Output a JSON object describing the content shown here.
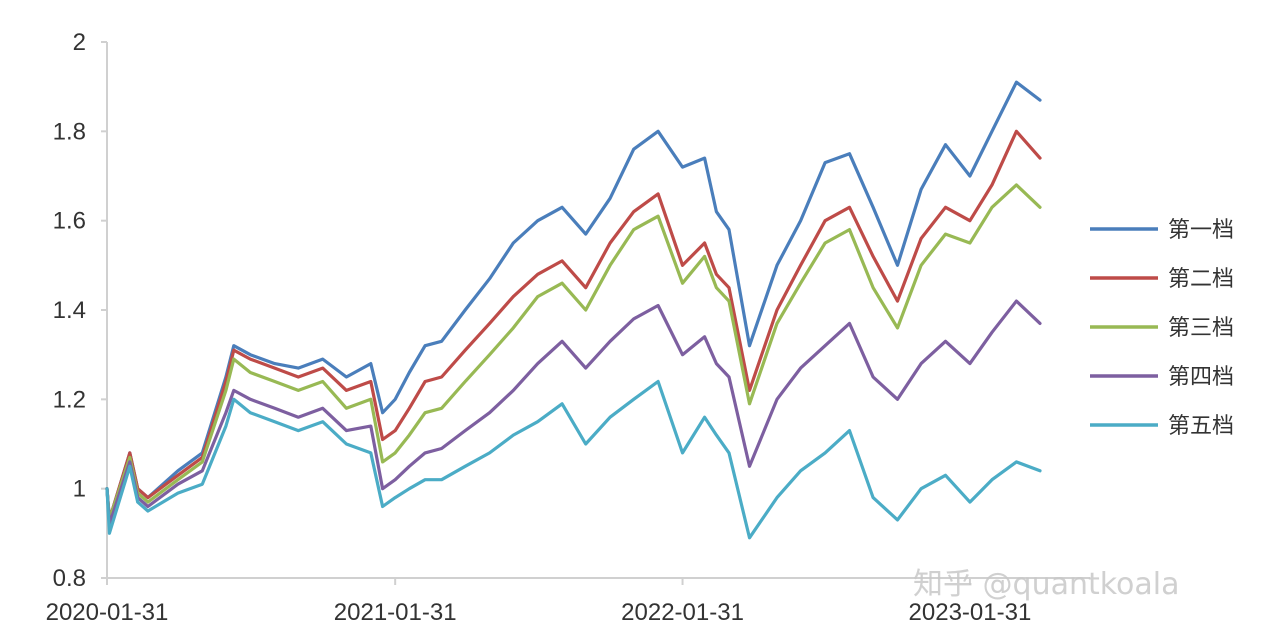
{
  "chart_data": {
    "type": "line",
    "title": "",
    "xlabel": "",
    "ylabel": "",
    "x_ticks": [
      "2020-01-31",
      "2021-01-31",
      "2022-01-31",
      "2023-01-31"
    ],
    "y_ticks": [
      "0.8",
      "1",
      "1.2",
      "1.4",
      "1.6",
      "1.8",
      "2"
    ],
    "ylim": [
      0.8,
      2.0
    ],
    "x_range": [
      "2020-01-31",
      "2023-04-30"
    ],
    "grid": false,
    "legend_position": "right",
    "watermark": "知乎 @quantkoala",
    "series": [
      {
        "name": "第一档",
        "color": "#4a7ebb",
        "x": [
          "2020-01-31",
          "2020-02-03",
          "2020-02-29",
          "2020-03-10",
          "2020-03-23",
          "2020-04-30",
          "2020-05-31",
          "2020-06-30",
          "2020-07-10",
          "2020-07-31",
          "2020-08-31",
          "2020-09-30",
          "2020-10-31",
          "2020-11-30",
          "2020-12-31",
          "2021-01-15",
          "2021-01-31",
          "2021-02-18",
          "2021-03-10",
          "2021-03-31",
          "2021-04-30",
          "2021-05-31",
          "2021-06-30",
          "2021-07-31",
          "2021-08-31",
          "2021-09-30",
          "2021-10-31",
          "2021-11-30",
          "2021-12-31",
          "2022-01-31",
          "2022-02-28",
          "2022-03-15",
          "2022-03-31",
          "2022-04-26",
          "2022-05-31",
          "2022-06-30",
          "2022-07-31",
          "2022-08-31",
          "2022-09-30",
          "2022-10-31",
          "2022-11-30",
          "2022-12-31",
          "2023-01-31",
          "2023-02-28",
          "2023-03-31",
          "2023-04-30"
        ],
        "values": [
          1.0,
          0.93,
          1.08,
          1.0,
          0.98,
          1.04,
          1.08,
          1.25,
          1.32,
          1.3,
          1.28,
          1.27,
          1.29,
          1.25,
          1.28,
          1.17,
          1.2,
          1.26,
          1.32,
          1.33,
          1.4,
          1.47,
          1.55,
          1.6,
          1.63,
          1.57,
          1.65,
          1.76,
          1.8,
          1.72,
          1.74,
          1.62,
          1.58,
          1.32,
          1.5,
          1.6,
          1.73,
          1.75,
          1.63,
          1.5,
          1.67,
          1.77,
          1.7,
          1.8,
          1.91,
          1.87
        ]
      },
      {
        "name": "第二档",
        "color": "#be4b48",
        "x": [
          "2020-01-31",
          "2020-02-03",
          "2020-02-29",
          "2020-03-10",
          "2020-03-23",
          "2020-04-30",
          "2020-05-31",
          "2020-06-30",
          "2020-07-10",
          "2020-07-31",
          "2020-08-31",
          "2020-09-30",
          "2020-10-31",
          "2020-11-30",
          "2020-12-31",
          "2021-01-15",
          "2021-01-31",
          "2021-02-18",
          "2021-03-10",
          "2021-03-31",
          "2021-04-30",
          "2021-05-31",
          "2021-06-30",
          "2021-07-31",
          "2021-08-31",
          "2021-09-30",
          "2021-10-31",
          "2021-11-30",
          "2021-12-31",
          "2022-01-31",
          "2022-02-28",
          "2022-03-15",
          "2022-03-31",
          "2022-04-26",
          "2022-05-31",
          "2022-06-30",
          "2022-07-31",
          "2022-08-31",
          "2022-09-30",
          "2022-10-31",
          "2022-11-30",
          "2022-12-31",
          "2023-01-31",
          "2023-02-28",
          "2023-03-31",
          "2023-04-30"
        ],
        "values": [
          1.0,
          0.93,
          1.08,
          1.0,
          0.98,
          1.03,
          1.07,
          1.24,
          1.31,
          1.29,
          1.27,
          1.25,
          1.27,
          1.22,
          1.24,
          1.11,
          1.13,
          1.18,
          1.24,
          1.25,
          1.31,
          1.37,
          1.43,
          1.48,
          1.51,
          1.45,
          1.55,
          1.62,
          1.66,
          1.5,
          1.55,
          1.48,
          1.45,
          1.22,
          1.4,
          1.5,
          1.6,
          1.63,
          1.52,
          1.42,
          1.56,
          1.63,
          1.6,
          1.68,
          1.8,
          1.74
        ]
      },
      {
        "name": "第三档",
        "color": "#98b954",
        "x": [
          "2020-01-31",
          "2020-02-03",
          "2020-02-29",
          "2020-03-10",
          "2020-03-23",
          "2020-04-30",
          "2020-05-31",
          "2020-06-30",
          "2020-07-10",
          "2020-07-31",
          "2020-08-31",
          "2020-09-30",
          "2020-10-31",
          "2020-11-30",
          "2020-12-31",
          "2021-01-15",
          "2021-01-31",
          "2021-02-18",
          "2021-03-10",
          "2021-03-31",
          "2021-04-30",
          "2021-05-31",
          "2021-06-30",
          "2021-07-31",
          "2021-08-31",
          "2021-09-30",
          "2021-10-31",
          "2021-11-30",
          "2021-12-31",
          "2022-01-31",
          "2022-02-28",
          "2022-03-15",
          "2022-03-31",
          "2022-04-26",
          "2022-05-31",
          "2022-06-30",
          "2022-07-31",
          "2022-08-31",
          "2022-09-30",
          "2022-10-31",
          "2022-11-30",
          "2022-12-31",
          "2023-01-31",
          "2023-02-28",
          "2023-03-31",
          "2023-04-30"
        ],
        "values": [
          1.0,
          0.93,
          1.07,
          0.99,
          0.97,
          1.02,
          1.06,
          1.22,
          1.29,
          1.26,
          1.24,
          1.22,
          1.24,
          1.18,
          1.2,
          1.06,
          1.08,
          1.12,
          1.17,
          1.18,
          1.24,
          1.3,
          1.36,
          1.43,
          1.46,
          1.4,
          1.5,
          1.58,
          1.61,
          1.46,
          1.52,
          1.45,
          1.42,
          1.19,
          1.37,
          1.46,
          1.55,
          1.58,
          1.45,
          1.36,
          1.5,
          1.57,
          1.55,
          1.63,
          1.68,
          1.63
        ]
      },
      {
        "name": "第四档",
        "color": "#7d5fa0",
        "x": [
          "2020-01-31",
          "2020-02-03",
          "2020-02-29",
          "2020-03-10",
          "2020-03-23",
          "2020-04-30",
          "2020-05-31",
          "2020-06-30",
          "2020-07-10",
          "2020-07-31",
          "2020-08-31",
          "2020-09-30",
          "2020-10-31",
          "2020-11-30",
          "2020-12-31",
          "2021-01-15",
          "2021-01-31",
          "2021-02-18",
          "2021-03-10",
          "2021-03-31",
          "2021-04-30",
          "2021-05-31",
          "2021-06-30",
          "2021-07-31",
          "2021-08-31",
          "2021-09-30",
          "2021-10-31",
          "2021-11-30",
          "2021-12-31",
          "2022-01-31",
          "2022-02-28",
          "2022-03-15",
          "2022-03-31",
          "2022-04-26",
          "2022-05-31",
          "2022-06-30",
          "2022-07-31",
          "2022-08-31",
          "2022-09-30",
          "2022-10-31",
          "2022-11-30",
          "2022-12-31",
          "2023-01-31",
          "2023-02-28",
          "2023-03-31",
          "2023-04-30"
        ],
        "values": [
          1.0,
          0.92,
          1.06,
          0.98,
          0.96,
          1.01,
          1.04,
          1.17,
          1.22,
          1.2,
          1.18,
          1.16,
          1.18,
          1.13,
          1.14,
          1.0,
          1.02,
          1.05,
          1.08,
          1.09,
          1.13,
          1.17,
          1.22,
          1.28,
          1.33,
          1.27,
          1.33,
          1.38,
          1.41,
          1.3,
          1.34,
          1.28,
          1.25,
          1.05,
          1.2,
          1.27,
          1.32,
          1.37,
          1.25,
          1.2,
          1.28,
          1.33,
          1.28,
          1.35,
          1.42,
          1.37
        ]
      },
      {
        "name": "第五档",
        "color": "#4bacc6",
        "x": [
          "2020-01-31",
          "2020-02-03",
          "2020-02-29",
          "2020-03-10",
          "2020-03-23",
          "2020-04-30",
          "2020-05-31",
          "2020-06-30",
          "2020-07-10",
          "2020-07-31",
          "2020-08-31",
          "2020-09-30",
          "2020-10-31",
          "2020-11-30",
          "2020-12-31",
          "2021-01-15",
          "2021-01-31",
          "2021-02-18",
          "2021-03-10",
          "2021-03-31",
          "2021-04-30",
          "2021-05-31",
          "2021-06-30",
          "2021-07-31",
          "2021-08-31",
          "2021-09-30",
          "2021-10-31",
          "2021-11-30",
          "2021-12-31",
          "2022-01-31",
          "2022-02-28",
          "2022-03-15",
          "2022-03-31",
          "2022-04-26",
          "2022-05-31",
          "2022-06-30",
          "2022-07-31",
          "2022-08-31",
          "2022-09-30",
          "2022-10-31",
          "2022-11-30",
          "2022-12-31",
          "2023-01-31",
          "2023-02-28",
          "2023-03-31",
          "2023-04-30"
        ],
        "values": [
          1.0,
          0.9,
          1.05,
          0.97,
          0.95,
          0.99,
          1.01,
          1.14,
          1.2,
          1.17,
          1.15,
          1.13,
          1.15,
          1.1,
          1.08,
          0.96,
          0.98,
          1.0,
          1.02,
          1.02,
          1.05,
          1.08,
          1.12,
          1.15,
          1.19,
          1.1,
          1.16,
          1.2,
          1.24,
          1.08,
          1.16,
          1.12,
          1.08,
          0.89,
          0.98,
          1.04,
          1.08,
          1.13,
          0.98,
          0.93,
          1.0,
          1.03,
          0.97,
          1.02,
          1.06,
          1.04
        ]
      }
    ]
  }
}
